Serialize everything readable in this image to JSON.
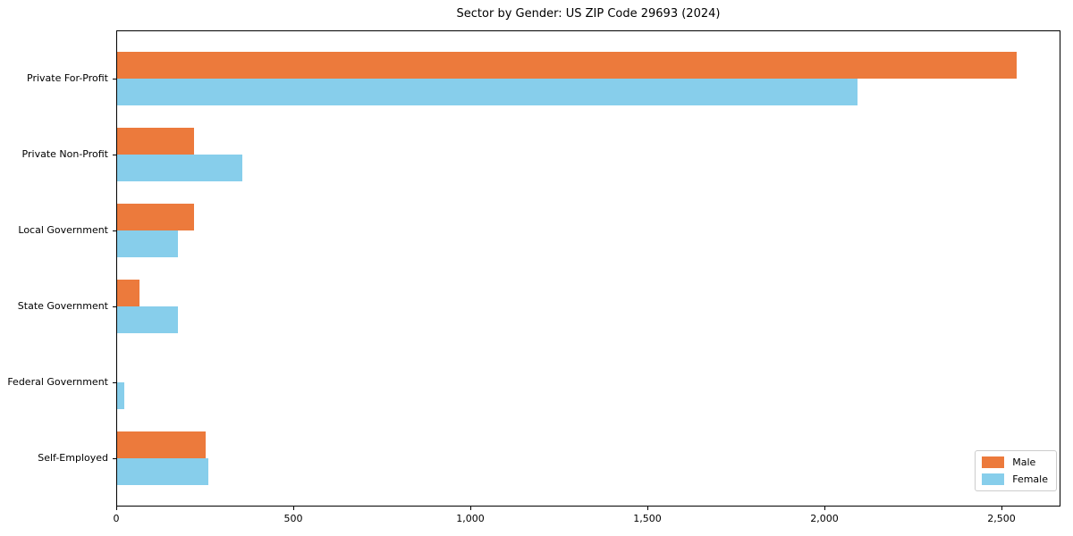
{
  "chart_data": {
    "type": "bar",
    "orientation": "horizontal",
    "title": "Sector by Gender: US ZIP Code 29693 (2024)",
    "categories": [
      "Private For-Profit",
      "Private Non-Profit",
      "Local Government",
      "State Government",
      "Federal Government",
      "Self-Employed"
    ],
    "series": [
      {
        "name": "Male",
        "color": "#EC7A3C",
        "values": [
          2540,
          217,
          217,
          63,
          0,
          250
        ]
      },
      {
        "name": "Female",
        "color": "#87CEEB",
        "values": [
          2090,
          353,
          172,
          172,
          20,
          258
        ]
      }
    ],
    "xlabel": "",
    "ylabel": "",
    "xlim": [
      0,
      2667
    ],
    "x_ticks": [
      {
        "value": 0,
        "label": "0"
      },
      {
        "value": 500,
        "label": "500"
      },
      {
        "value": 1000,
        "label": "1,000"
      },
      {
        "value": 1500,
        "label": "1,500"
      },
      {
        "value": 2000,
        "label": "2,000"
      },
      {
        "value": 2500,
        "label": "2,500"
      }
    ],
    "grid": false,
    "legend": {
      "position": "lower right"
    }
  }
}
